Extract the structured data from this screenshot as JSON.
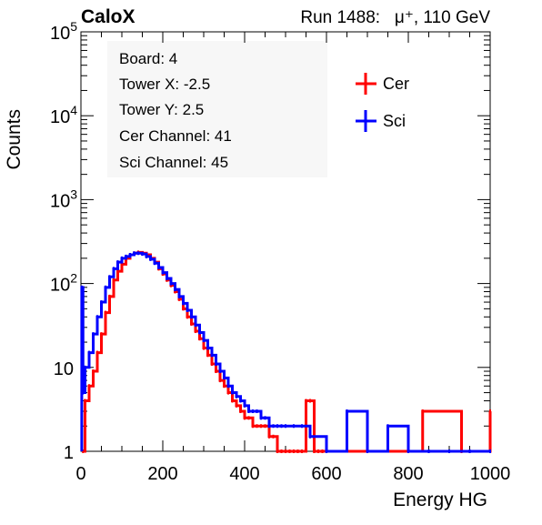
{
  "header": {
    "logo": "CaloX",
    "run_text": "Run 1488:   μ⁺, 110 GeV"
  },
  "info_box": {
    "lines": [
      "Board: 4",
      "Tower X: -2.5",
      "Tower Y: 2.5",
      "Cer Channel: 41",
      "Sci Channel: 45"
    ]
  },
  "colors": {
    "cer": "#ff0000",
    "sci": "#0000ff",
    "axis": "#000000"
  },
  "chart_data": {
    "type": "line",
    "style": "histogram",
    "title": "",
    "xlabel": "Energy HG",
    "ylabel": "Counts",
    "xlim": [
      0,
      1000
    ],
    "ylim": [
      1,
      100000
    ],
    "yscale": "log",
    "grid": false,
    "legend_position": "top-right",
    "x_ticks": [
      "0",
      "200",
      "400",
      "600",
      "800",
      "1000"
    ],
    "y_ticks": [
      {
        "value": 1,
        "base": "1",
        "exp": ""
      },
      {
        "value": 10,
        "base": "10",
        "exp": ""
      },
      {
        "value": 100,
        "base": "10",
        "exp": "2"
      },
      {
        "value": 1000,
        "base": "10",
        "exp": "3"
      },
      {
        "value": 10000,
        "base": "10",
        "exp": "4"
      },
      {
        "value": 100000,
        "base": "10",
        "exp": "5"
      }
    ],
    "series": [
      {
        "name": "Cer",
        "color": "#ff0000",
        "x": [
          5,
          10,
          20,
          30,
          40,
          50,
          60,
          70,
          80,
          90,
          100,
          110,
          120,
          130,
          140,
          150,
          160,
          170,
          180,
          190,
          200,
          210,
          220,
          230,
          240,
          250,
          260,
          270,
          280,
          290,
          300,
          310,
          320,
          330,
          340,
          350,
          360,
          370,
          380,
          390,
          400,
          410,
          420,
          430,
          440,
          450,
          460,
          470,
          480,
          490,
          500,
          510,
          520,
          530,
          540,
          550,
          560,
          570,
          580,
          590,
          600,
          700,
          800,
          835,
          930,
          1000
        ],
        "y": [
          1,
          4,
          6,
          9,
          15,
          25,
          45,
          70,
          110,
          140,
          170,
          200,
          220,
          230,
          235,
          230,
          220,
          200,
          180,
          150,
          130,
          110,
          95,
          80,
          65,
          50,
          40,
          33,
          27,
          22,
          17,
          14,
          11,
          9,
          7,
          6,
          5,
          4,
          3.5,
          3,
          2.5,
          2.5,
          2,
          2,
          2,
          2,
          1.5,
          1.5,
          1,
          1,
          1,
          1,
          1,
          1,
          1,
          4,
          4,
          1,
          1,
          1,
          1,
          1,
          1,
          3,
          1,
          3
        ]
      },
      {
        "name": "Sci",
        "color": "#0000ff",
        "x": [
          2,
          5,
          10,
          20,
          30,
          40,
          50,
          60,
          70,
          80,
          90,
          100,
          110,
          120,
          130,
          140,
          150,
          160,
          170,
          180,
          190,
          200,
          210,
          220,
          230,
          240,
          250,
          260,
          270,
          280,
          290,
          300,
          310,
          320,
          330,
          340,
          350,
          360,
          370,
          380,
          390,
          400,
          410,
          420,
          430,
          440,
          450,
          460,
          470,
          480,
          490,
          500,
          520,
          540,
          560,
          600,
          650,
          700,
          750,
          800,
          850,
          900,
          950,
          1000
        ],
        "y": [
          90,
          5,
          10,
          15,
          25,
          40,
          60,
          90,
          120,
          150,
          180,
          200,
          210,
          220,
          230,
          230,
          225,
          210,
          195,
          175,
          155,
          135,
          115,
          100,
          85,
          70,
          58,
          48,
          40,
          32,
          26,
          21,
          17,
          14,
          11,
          9,
          7.5,
          6,
          5,
          4.5,
          4,
          3.5,
          3,
          3,
          3,
          2.5,
          2.5,
          2,
          2,
          2,
          2,
          2,
          2,
          2,
          1.5,
          1,
          3,
          1,
          2,
          1,
          1,
          1,
          1,
          1
        ]
      }
    ]
  }
}
